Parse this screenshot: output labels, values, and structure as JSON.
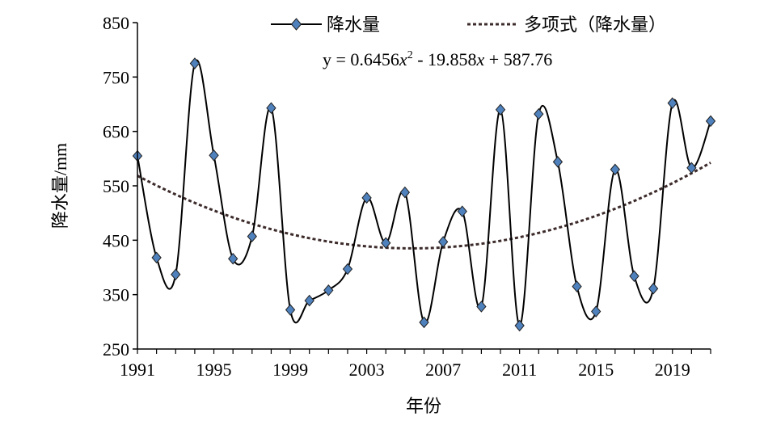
{
  "chart_data": {
    "type": "line",
    "title": "",
    "xlabel": "年份",
    "ylabel": "降水量/mm",
    "x": [
      1991,
      1992,
      1993,
      1994,
      1995,
      1996,
      1997,
      1998,
      1999,
      2000,
      2001,
      2002,
      2003,
      2004,
      2005,
      2006,
      2007,
      2008,
      2009,
      2010,
      2011,
      2012,
      2013,
      2014,
      2015,
      2016,
      2017,
      2018,
      2019,
      2020,
      2021
    ],
    "x_ticks": [
      "1991",
      "1995",
      "1999",
      "2003",
      "2007",
      "2011",
      "2015",
      "2019"
    ],
    "xlim": [
      1991,
      2021
    ],
    "y_ticks": [
      "250",
      "350",
      "450",
      "550",
      "650",
      "750",
      "850"
    ],
    "ylim": [
      250,
      850
    ],
    "grid": false,
    "legend_position": "top",
    "series": [
      {
        "name": "降水量",
        "style": "smooth line with diamond markers",
        "color": "#000000",
        "marker_color": "#4f81bd",
        "values": [
          605,
          418,
          387,
          775,
          606,
          416,
          457,
          693,
          322,
          339,
          358,
          397,
          528,
          445,
          538,
          299,
          447,
          503,
          328,
          690,
          293,
          682,
          594,
          365,
          319,
          580,
          384,
          361,
          702,
          583,
          669
        ]
      },
      {
        "name": "多项式（降水量）",
        "style": "dotted trendline",
        "color": "#3d2b2b",
        "fit": {
          "a": 0.6456,
          "b": -19.858,
          "c": 587.76
        }
      }
    ],
    "annotations": {
      "equation_prefix": "y = 0.6456",
      "equation_x1": "x",
      "equation_sup": "2",
      "equation_mid": " - 19.858",
      "equation_x2": "x",
      "equation_suffix": " + 587.76"
    }
  }
}
